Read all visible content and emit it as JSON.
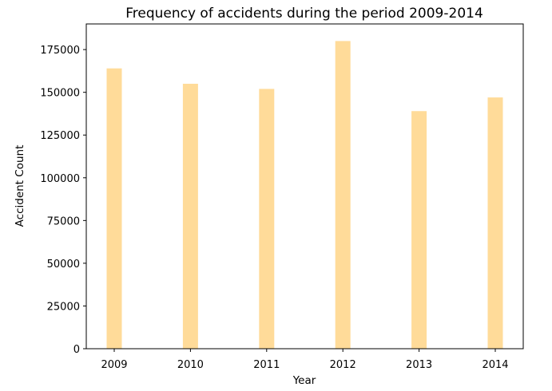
{
  "chart_data": {
    "type": "bar",
    "title": "Frequency of accidents during the period 2009-2014",
    "xlabel": "Year",
    "ylabel": "Accident Count",
    "categories": [
      "2009",
      "2010",
      "2011",
      "2012",
      "2013",
      "2014"
    ],
    "values": [
      164000,
      155000,
      152000,
      180000,
      139000,
      147000
    ],
    "ylim": [
      0,
      190000
    ],
    "yticks": [
      0,
      25000,
      50000,
      75000,
      100000,
      125000,
      150000,
      175000
    ],
    "bar_color": "#ffdb99",
    "grid": false,
    "legend": false
  }
}
